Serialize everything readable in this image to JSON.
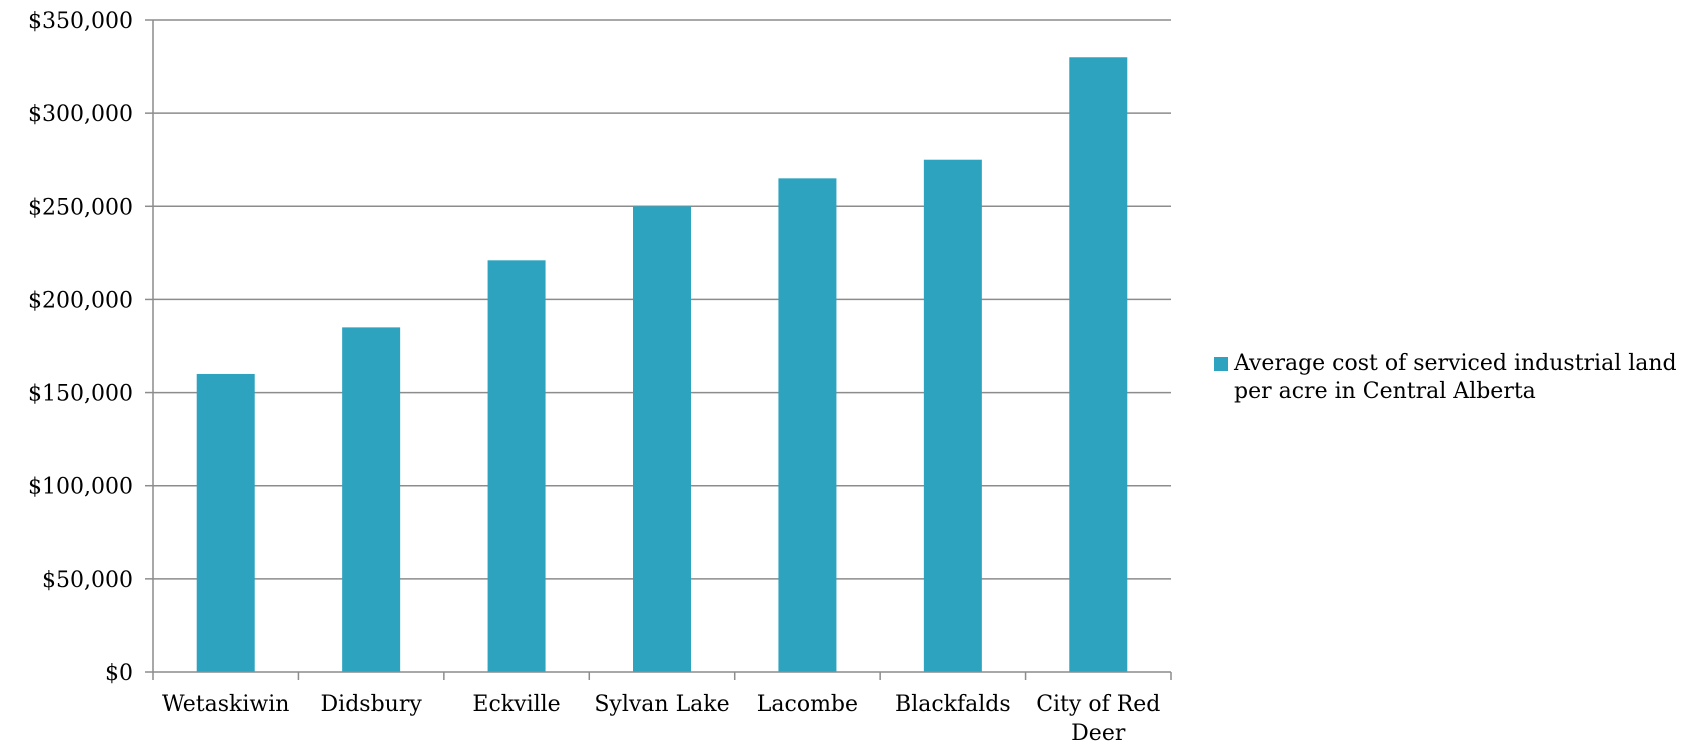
{
  "chart_data": {
    "type": "bar",
    "categories": [
      "Wetaskiwin",
      "Didsbury",
      "Eckville",
      "Sylvan Lake",
      "Lacombe",
      "Blackfalds",
      "City of Red Deer"
    ],
    "series": [
      {
        "name": "Average cost of serviced industrial land per acre in Central Alberta",
        "values": [
          160000,
          185000,
          221000,
          250000,
          265000,
          275000,
          330000
        ],
        "color": "#2ea3bf"
      }
    ],
    "ylim": [
      0,
      350000
    ],
    "yticks": [
      0,
      50000,
      100000,
      150000,
      200000,
      250000,
      300000,
      350000
    ],
    "ytick_labels": [
      "$0",
      "$50,000",
      "$100,000",
      "$150,000",
      "$200,000",
      "$250,000",
      "$300,000",
      "$350,000"
    ],
    "xlabel": "",
    "ylabel": "",
    "title": "",
    "grid": true,
    "legend_position": "right"
  }
}
